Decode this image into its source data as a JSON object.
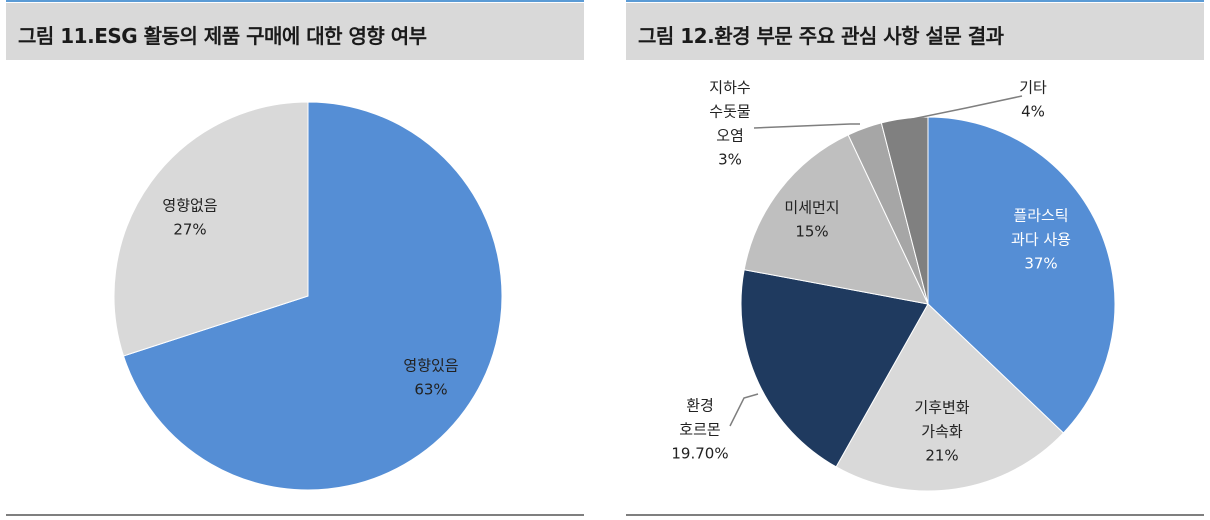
{
  "charts": [
    {
      "title": "그림 11.ESG 활동의 제품 구매에 대한 영향 여부",
      "chart_data": {
        "type": "pie",
        "slices": [
          {
            "label": [
              "영향있음"
            ],
            "pct_label": "63%",
            "value": 63,
            "color": "#558ed5"
          },
          {
            "label": [
              "영향없음"
            ],
            "pct_label": "27%",
            "value": 27,
            "color": "#d9d9d9"
          }
        ]
      }
    },
    {
      "title": "그림 12.환경 부문 주요 관심 사항 설문 결과",
      "chart_data": {
        "type": "pie",
        "slices": [
          {
            "label": [
              "플라스틱",
              "과다 사용"
            ],
            "pct_label": "37%",
            "value": 37,
            "color": "#558ed5"
          },
          {
            "label": [
              "기후변화",
              "가속화"
            ],
            "pct_label": "21%",
            "value": 21,
            "color": "#d9d9d9"
          },
          {
            "label": [
              "환경",
              "호르몬"
            ],
            "pct_label": "19.70%",
            "value": 19.7,
            "color": "#1f3a5f"
          },
          {
            "label": [
              "미세먼지"
            ],
            "pct_label": "15%",
            "value": 15,
            "color": "#bfbfbf"
          },
          {
            "label": [
              "지하수",
              "수돗물",
              "오염"
            ],
            "pct_label": "3%",
            "value": 3,
            "color": "#a6a6a6"
          },
          {
            "label": [
              "기타"
            ],
            "pct_label": "4%",
            "value": 4,
            "color": "#808080"
          }
        ]
      }
    }
  ]
}
